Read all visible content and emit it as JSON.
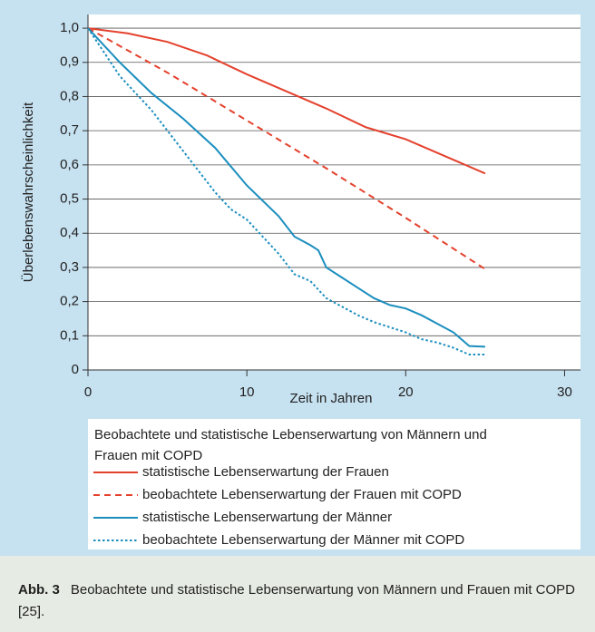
{
  "chart_data": {
    "type": "line",
    "xlabel": "Zeit in Jahren",
    "ylabel": "Überlebenswahrscheinlichkeit",
    "xlim": [
      0,
      31
    ],
    "xticks": [
      0,
      10,
      20,
      30
    ],
    "ylim": [
      0,
      1.04
    ],
    "yticks": [
      0,
      {
        "value": 0.1,
        "label": "0,1"
      },
      {
        "value": 0.2,
        "label": "0,2"
      },
      {
        "value": 0.3,
        "label": "0,3"
      },
      {
        "value": 0.4,
        "label": "0,4"
      },
      {
        "value": 0.5,
        "label": "0,5"
      },
      {
        "value": 0.6,
        "label": "0,6"
      },
      {
        "value": 0.7,
        "label": "0,7"
      },
      {
        "value": 0.8,
        "label": "0,8"
      },
      {
        "value": 0.9,
        "label": "0,9"
      },
      {
        "value": 1.0,
        "label": "1,0"
      }
    ],
    "grid": true,
    "legend_title": "Beobachtete und statistische Lebenserwartung von Männern und Frauen mit COPD",
    "series": [
      {
        "name": "statistische Lebenserwartung der Frauen",
        "color": "#e4412d",
        "style": "solid",
        "x": [
          0,
          2.5,
          5,
          7.5,
          10,
          12.5,
          15,
          17.5,
          20,
          22.5,
          25
        ],
        "values": [
          1.0,
          0.985,
          0.96,
          0.92,
          0.865,
          0.815,
          0.765,
          0.71,
          0.675,
          0.625,
          0.575
        ]
      },
      {
        "name": "beobachtete Lebenserwartung der Frauen mit COPD",
        "color": "#e4412d",
        "style": "dashed",
        "x": [
          0,
          5,
          10,
          15,
          20,
          25
        ],
        "values": [
          1.0,
          0.87,
          0.73,
          0.59,
          0.445,
          0.295
        ]
      },
      {
        "name": "statistische Lebenserwartung der Männer",
        "color": "#1b8ebe",
        "style": "solid",
        "x": [
          0,
          2,
          4,
          6,
          8,
          10,
          12,
          13,
          14,
          14.5,
          15,
          16,
          17,
          18,
          19,
          20,
          21,
          22,
          23,
          24,
          25
        ],
        "values": [
          1.0,
          0.9,
          0.81,
          0.735,
          0.65,
          0.54,
          0.45,
          0.39,
          0.365,
          0.35,
          0.3,
          0.27,
          0.24,
          0.21,
          0.19,
          0.18,
          0.16,
          0.135,
          0.11,
          0.07,
          0.068
        ]
      },
      {
        "name": "beobachtete Lebenserwartung der Männer mit COPD",
        "color": "#1b8ebe",
        "style": "dotted",
        "x": [
          0,
          2,
          4,
          6,
          7,
          8,
          9,
          10,
          11,
          12,
          13,
          14,
          15,
          16,
          17,
          18,
          19,
          20,
          21,
          22,
          23,
          24,
          25
        ],
        "values": [
          1.0,
          0.86,
          0.76,
          0.64,
          0.58,
          0.52,
          0.47,
          0.44,
          0.39,
          0.34,
          0.28,
          0.26,
          0.21,
          0.185,
          0.16,
          0.14,
          0.125,
          0.11,
          0.09,
          0.08,
          0.065,
          0.045,
          0.045
        ]
      }
    ]
  },
  "caption": {
    "label": "Abb. 3",
    "text": "Beobachtete und statistische Lebenserwartung von Männern und Frauen mit COPD [25]."
  }
}
